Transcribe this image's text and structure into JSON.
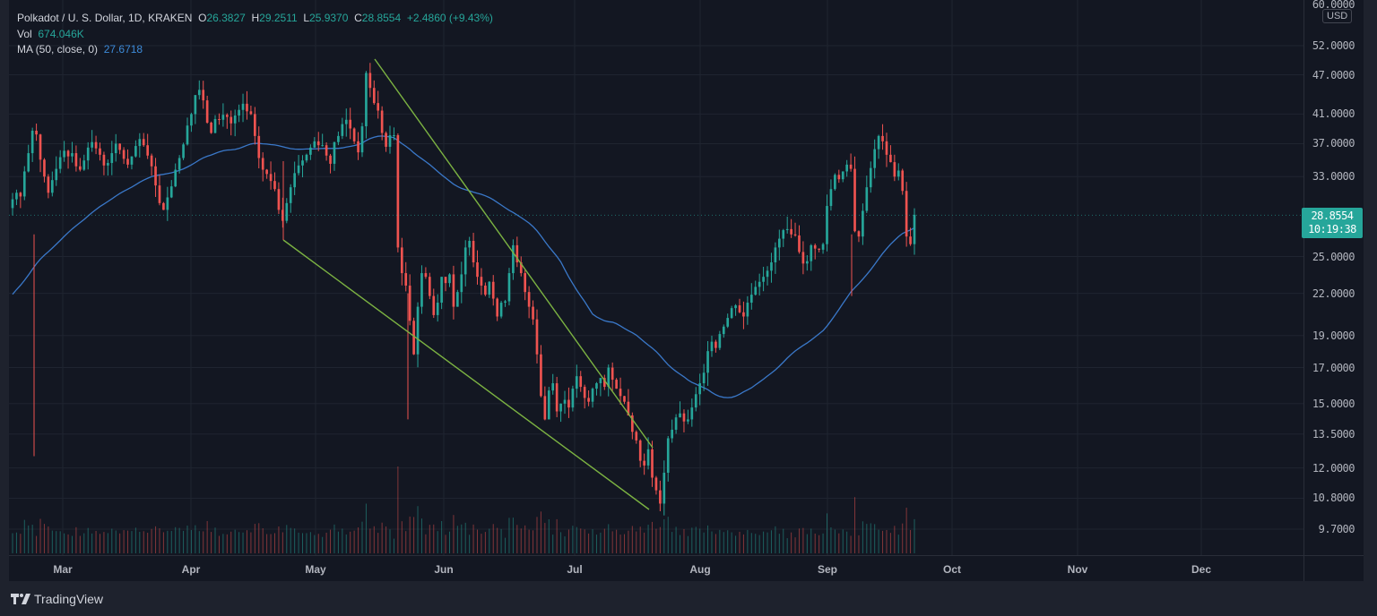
{
  "header": {
    "symbol": "Polkadot / U. S. Dollar, 1D, KRAKEN",
    "open_label": "O",
    "open": "26.3827",
    "high_label": "H",
    "high": "29.2511",
    "low_label": "L",
    "low": "25.9370",
    "close_label": "C",
    "close": "28.8554",
    "change": "+2.4860 (+9.43%)",
    "vol_label": "Vol",
    "vol": "674.046K",
    "ma_label": "MA (50, close, 0)",
    "ma": "27.6718"
  },
  "price_axis": {
    "currency": "USD",
    "ticks": [
      "60.0000",
      "52.0000",
      "47.0000",
      "41.0000",
      "37.0000",
      "33.0000",
      "25.0000",
      "22.0000",
      "19.0000",
      "17.0000",
      "15.0000",
      "13.5000",
      "12.0000",
      "10.8000",
      "9.7000"
    ],
    "last_price": "28.8554",
    "countdown": "10:19:38"
  },
  "time_axis": {
    "labels": [
      "Mar",
      "Apr",
      "May",
      "Jun",
      "Jul",
      "Aug",
      "Sep",
      "Oct",
      "Nov",
      "Dec"
    ]
  },
  "footer": {
    "brand": "TradingView"
  },
  "colors": {
    "up": "#26a69a",
    "down": "#ef5350",
    "ma": "#3a78c9",
    "trendline": "#7cb342",
    "bg": "#131722",
    "grid": "#1f2430"
  },
  "chart_data": {
    "type": "candlestick",
    "title": "Polkadot / U. S. Dollar, 1D, KRAKEN",
    "yscale": "log",
    "ylim": [
      9.0,
      60.0
    ],
    "ylabel": "USD",
    "x_labels": [
      "Mar",
      "Apr",
      "May",
      "Jun",
      "Jul",
      "Aug",
      "Sep",
      "Oct",
      "Nov",
      "Dec"
    ],
    "last": {
      "open": 26.3827,
      "high": 29.2511,
      "low": 25.937,
      "close": 28.8554,
      "volume": "674.046K"
    },
    "ma50_last": 27.6718,
    "ohlc_close_path": [
      30.5,
      31.2,
      30.8,
      33.6,
      35.8,
      38.7,
      38.2,
      35.0,
      33.0,
      31.2,
      32.6,
      33.9,
      35.3,
      36.1,
      35.4,
      35.8,
      34.2,
      33.8,
      34.9,
      36.5,
      37.2,
      36.4,
      35.6,
      34.3,
      34.6,
      35.8,
      37.0,
      36.2,
      35.1,
      34.4,
      35.4,
      36.7,
      37.6,
      36.8,
      35.5,
      34.2,
      32.0,
      30.1,
      29.4,
      30.7,
      31.9,
      33.8,
      35.2,
      36.9,
      39.4,
      41.0,
      43.8,
      44.6,
      43.0,
      39.8,
      38.4,
      40.3,
      40.2,
      40.9,
      40.6,
      39.7,
      40.8,
      41.6,
      42.5,
      41.4,
      41.0,
      38.0,
      35.2,
      33.8,
      33.3,
      32.5,
      31.6,
      29.4,
      28.3,
      30.1,
      31.8,
      33.4,
      34.3,
      34.9,
      35.6,
      36.5,
      37.3,
      36.8,
      36.8,
      35.5,
      34.5,
      37.2,
      38.0,
      39.6,
      40.2,
      39.0,
      37.3,
      35.9,
      39.3,
      47.3,
      44.9,
      42.6,
      41.5,
      38.4,
      36.6,
      38.1,
      38.1,
      25.8,
      23.6,
      22.6,
      20.0,
      17.8,
      21.0,
      23.6,
      23.3,
      21.8,
      20.4,
      21.3,
      23.3,
      22.8,
      23.5,
      21.0,
      22.1,
      23.5,
      25.8,
      26.4,
      24.5,
      23.3,
      22.6,
      21.9,
      22.9,
      21.6,
      20.3,
      21.3,
      21.4,
      23.6,
      26.0,
      24.5,
      23.6,
      22.1,
      21.0,
      20.1,
      17.8,
      15.4,
      14.2,
      15.7,
      16.1,
      14.6,
      15.0,
      15.2,
      14.8,
      15.8,
      16.5,
      15.9,
      15.3,
      15.1,
      15.8,
      16.1,
      16.4,
      15.9,
      17.0,
      16.3,
      15.8,
      15.4,
      15.1,
      14.4,
      13.6,
      13.2,
      12.3,
      12.1,
      12.8,
      11.6,
      11.1,
      10.6,
      11.8,
      13.3,
      13.7,
      14.3,
      14.5,
      14.1,
      14.2,
      14.8,
      15.5,
      16.1,
      16.7,
      18.0,
      18.6,
      18.2,
      19.1,
      19.6,
      20.2,
      20.9,
      21.1,
      20.6,
      20.3,
      21.3,
      21.9,
      22.5,
      22.9,
      23.3,
      23.8,
      24.5,
      25.8,
      26.6,
      27.4,
      27.5,
      27.0,
      26.9,
      25.4,
      24.4,
      24.6,
      26.0,
      25.7,
      25.6,
      26.1,
      29.8,
      31.6,
      33.2,
      32.7,
      33.6,
      34.4,
      33.9,
      27.3,
      26.8,
      29.3,
      31.8,
      34.0,
      36.3,
      38.0,
      37.3,
      35.6,
      34.7,
      33.0,
      33.7,
      31.4,
      26.8,
      26.1,
      28.9
    ]
  }
}
